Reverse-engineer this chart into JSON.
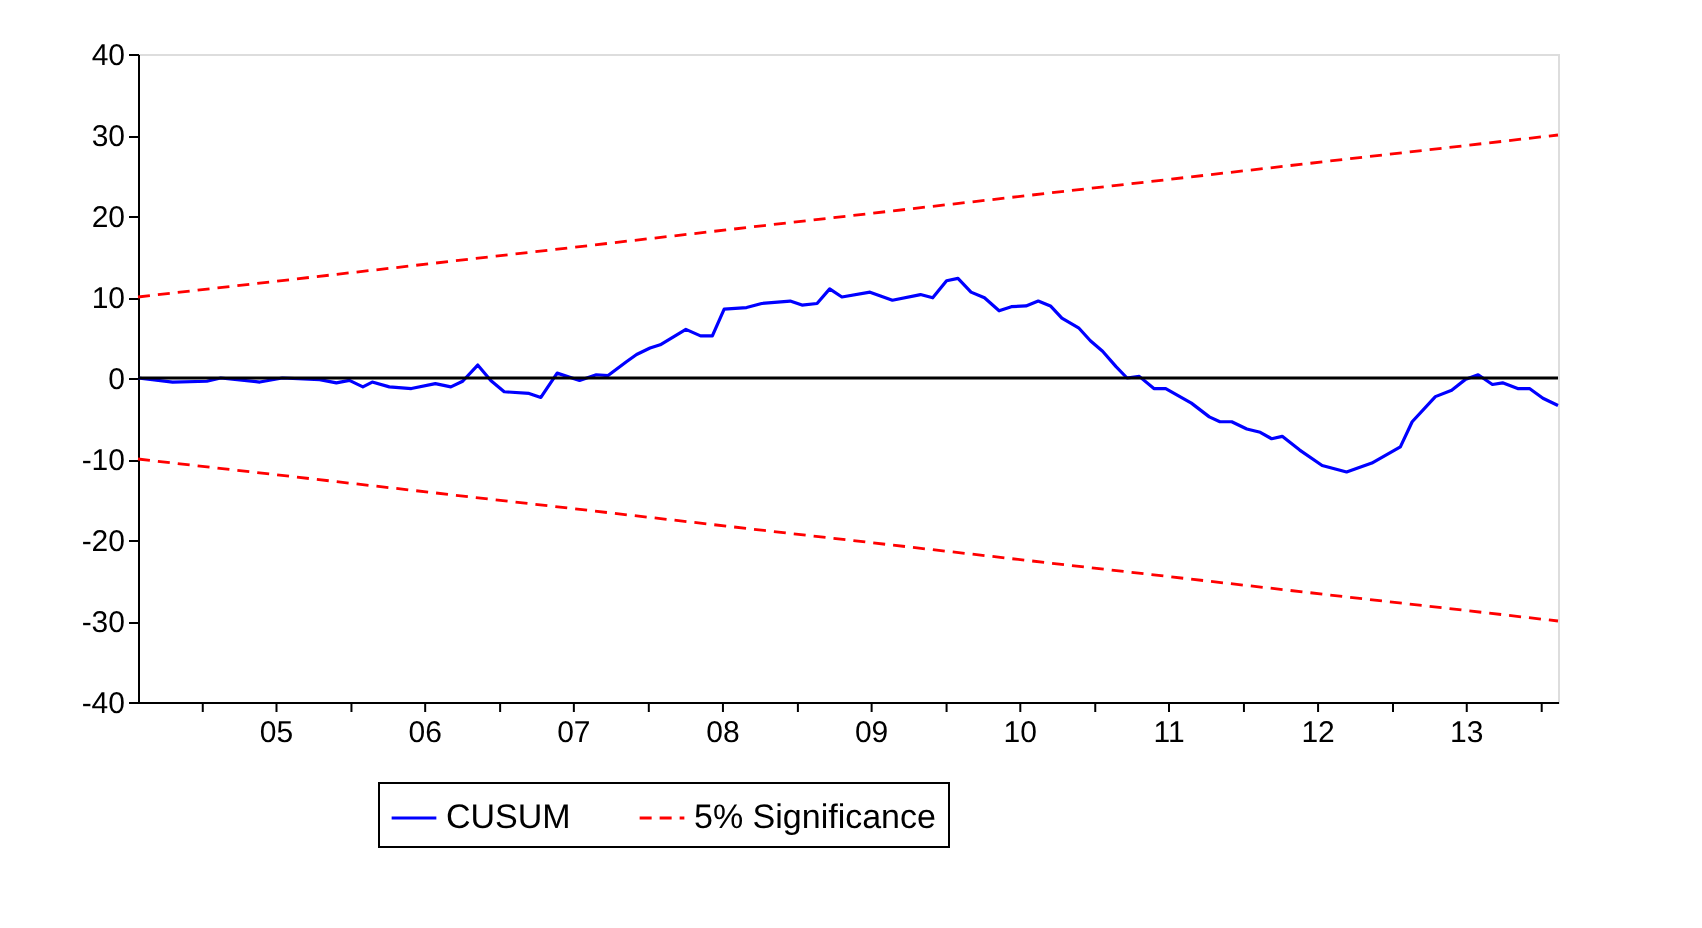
{
  "chart_data": {
    "type": "line",
    "xlim": [
      "2004-07-26",
      "2014-02-10"
    ],
    "ylim": [
      -40,
      40
    ],
    "yticks": [
      -40,
      -30,
      -20,
      -10,
      0,
      10,
      20,
      30,
      40
    ],
    "xticks": [
      {
        "value": "2005-01-01",
        "label": null
      },
      {
        "value": "2005-07-01",
        "label": "05"
      },
      {
        "value": "2006-01-01",
        "label": null
      },
      {
        "value": "2006-07-01",
        "label": "06"
      },
      {
        "value": "2007-01-01",
        "label": null
      },
      {
        "value": "2007-07-01",
        "label": "07"
      },
      {
        "value": "2008-01-01",
        "label": null
      },
      {
        "value": "2008-07-01",
        "label": "08"
      },
      {
        "value": "2009-01-01",
        "label": null
      },
      {
        "value": "2009-07-01",
        "label": "09"
      },
      {
        "value": "2010-01-01",
        "label": null
      },
      {
        "value": "2010-07-01",
        "label": "10"
      },
      {
        "value": "2011-01-01",
        "label": null
      },
      {
        "value": "2011-07-01",
        "label": "11"
      },
      {
        "value": "2012-01-01",
        "label": null
      },
      {
        "value": "2012-07-01",
        "label": "12"
      },
      {
        "value": "2013-01-01",
        "label": null
      },
      {
        "value": "2013-07-01",
        "label": "13"
      },
      {
        "value": "2014-01-01",
        "label": null
      }
    ],
    "grid": false,
    "legend": "bottom",
    "ref_lines": [
      {
        "axis": "y",
        "value": 0,
        "color": "#000000",
        "line_style": "solid"
      }
    ],
    "series": [
      {
        "name": "CUSUM",
        "color": "#0000ff",
        "line_style": "solid",
        "x": [
          "2004-07-26",
          "2004-10-19",
          "2005-01-11",
          "2005-02-14",
          "2005-05-21",
          "2005-07-15",
          "2005-10-15",
          "2005-11-25",
          "2005-12-27",
          "2006-01-29",
          "2006-02-21",
          "2006-04-04",
          "2006-05-28",
          "2006-07-26",
          "2006-09-02",
          "2006-10-01",
          "2006-11-07",
          "2006-12-09",
          "2007-01-11",
          "2007-03-13",
          "2007-04-11",
          "2007-05-21",
          "2007-07-15",
          "2007-08-25",
          "2007-09-23",
          "2007-11-07",
          "2007-12-02",
          "2008-01-04",
          "2008-01-29",
          "2008-04-01",
          "2008-05-07",
          "2008-06-05",
          "2008-07-04",
          "2008-08-28",
          "2008-10-04",
          "2008-12-13",
          "2009-01-11",
          "2009-02-17",
          "2009-03-20",
          "2009-04-19",
          "2009-06-27",
          "2009-08-21",
          "2009-10-29",
          "2009-11-28",
          "2010-01-01",
          "2010-01-29",
          "2010-03-02",
          "2010-04-04",
          "2010-05-10",
          "2010-06-09",
          "2010-07-15",
          "2010-08-14",
          "2010-09-13",
          "2010-10-11",
          "2010-11-21",
          "2010-12-20",
          "2011-01-19",
          "2011-02-21",
          "2011-03-20",
          "2011-04-19",
          "2011-05-25",
          "2011-06-23",
          "2011-08-25",
          "2011-10-08",
          "2011-11-03",
          "2011-12-02",
          "2012-01-08",
          "2012-02-10",
          "2012-03-09",
          "2012-04-04",
          "2012-05-17",
          "2012-07-11",
          "2012-09-09",
          "2012-11-10",
          "2013-01-19",
          "2013-02-17",
          "2013-04-15",
          "2013-05-25",
          "2013-06-27",
          "2013-07-29",
          "2013-09-02",
          "2013-09-27",
          "2013-11-03",
          "2013-12-02",
          "2014-01-04",
          "2014-02-10"
        ],
        "values": [
          0,
          -0.5,
          -0.4,
          0,
          -0.5,
          0,
          -0.2,
          -0.6,
          -0.3,
          -1.1,
          -0.5,
          -1.1,
          -1.3,
          -0.7,
          -1.1,
          -0.4,
          1.6,
          -0.3,
          -1.7,
          -1.9,
          -2.4,
          0.6,
          -0.3,
          0.4,
          0.3,
          2.0,
          2.9,
          3.7,
          4.1,
          6.0,
          5.2,
          5.2,
          8.5,
          8.7,
          9.2,
          9.5,
          9.0,
          9.2,
          11.0,
          10.0,
          10.6,
          9.6,
          10.3,
          9.9,
          12.0,
          12.3,
          10.6,
          9.9,
          8.3,
          8.8,
          8.9,
          9.5,
          8.9,
          7.4,
          6.2,
          4.6,
          3.3,
          1.4,
          0,
          0.2,
          -1.3,
          -1.3,
          -3.1,
          -4.8,
          -5.4,
          -5.4,
          -6.3,
          -6.7,
          -7.5,
          -7.2,
          -8.9,
          -10.8,
          -11.6,
          -10.5,
          -8.5,
          -5.4,
          -2.3,
          -1.5,
          -0.2,
          0.4,
          -0.8,
          -0.6,
          -1.3,
          -1.3,
          -2.5,
          -3.4
        ]
      },
      {
        "name": "5% Significance",
        "color": "#ff0000",
        "line_style": "dashed",
        "x": [
          "2004-07-26",
          "2014-02-10"
        ],
        "values": [
          10,
          30
        ]
      },
      {
        "color": "#ff0000",
        "line_style": "dashed",
        "x": [
          "2004-07-26",
          "2014-02-10"
        ],
        "values": [
          -10,
          -30
        ]
      }
    ]
  }
}
